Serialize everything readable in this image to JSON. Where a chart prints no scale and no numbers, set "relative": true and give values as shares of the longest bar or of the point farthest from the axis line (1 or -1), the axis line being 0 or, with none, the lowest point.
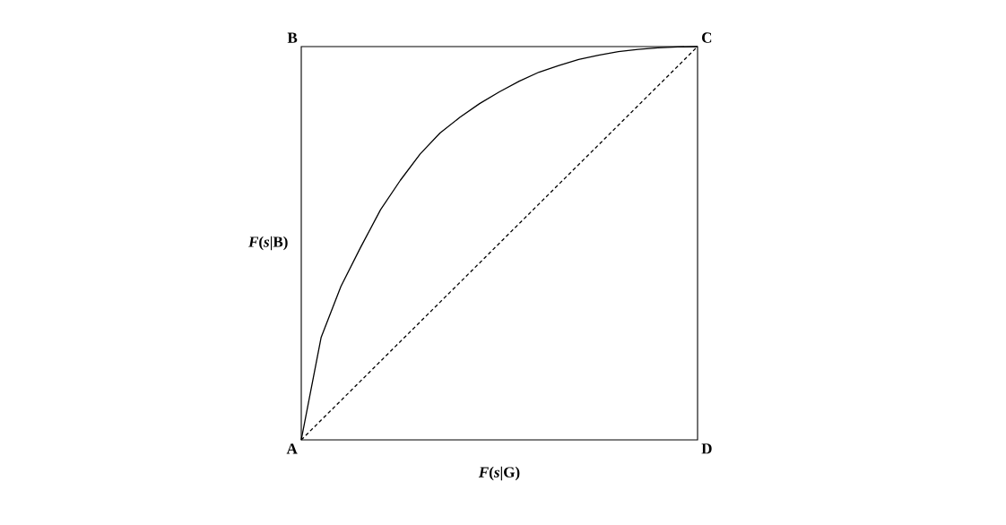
{
  "chart_data": {
    "type": "line",
    "relative": true,
    "xlabel": "*F*(*s*|G)",
    "ylabel": "*F*(*s*|B)",
    "marker": "none",
    "categories": [
      null,
      null,
      null,
      null,
      null,
      null,
      null,
      null,
      null,
      null,
      null,
      null,
      null,
      null,
      null,
      null,
      null,
      null,
      null,
      null,
      null
    ],
    "series": [
      {
        "color": "#000000",
        "line_style": "solid",
        "values": [
          0,
          0.26,
          0.39,
          0.49,
          0.585,
          0.66,
          0.727,
          0.78,
          0.82,
          0.855,
          0.885,
          0.912,
          0.935,
          0.952,
          0.967,
          0.978,
          0.987,
          0.993,
          0.997,
          0.999,
          1
        ]
      },
      {
        "color": "#000000",
        "line_style": "dashed",
        "values": [
          0,
          0.05,
          0.1,
          0.15,
          0.2,
          0.25,
          0.3,
          0.35,
          0.4,
          0.45,
          0.5,
          0.55,
          0.6,
          0.65,
          0.7,
          0.75,
          0.8,
          0.85,
          0.9,
          0.95,
          1
        ]
      }
    ],
    "annotations": [
      "A",
      "B",
      "C",
      "D"
    ]
  }
}
